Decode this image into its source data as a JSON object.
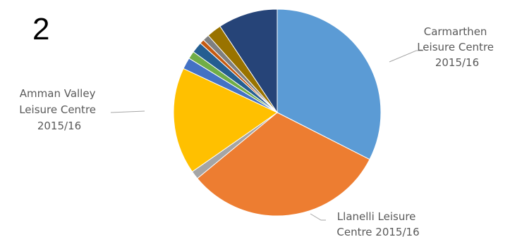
{
  "page_number": "2",
  "chart_data": {
    "type": "pie",
    "title": "",
    "legend": "none",
    "slices": [
      {
        "label": "Carmarthen Leisure Centre 2015/16",
        "value": 32.5,
        "color": "#5b9bd5"
      },
      {
        "label": "Llanelli Leisure Centre 2015/16",
        "value": 31.5,
        "color": "#ed7d31"
      },
      {
        "label": "",
        "value": 1.3,
        "color": "#a5a5a5"
      },
      {
        "label": "Amman Valley Leisure Centre 2015/16",
        "value": 16.7,
        "color": "#ffc000"
      },
      {
        "label": "",
        "value": 1.8,
        "color": "#4472c4"
      },
      {
        "label": "",
        "value": 1.2,
        "color": "#70ad47"
      },
      {
        "label": "",
        "value": 1.7,
        "color": "#255e91"
      },
      {
        "label": "",
        "value": 0.7,
        "color": "#c55a11"
      },
      {
        "label": "",
        "value": 1.0,
        "color": "#7f7f7f"
      },
      {
        "label": "",
        "value": 2.3,
        "color": "#997300"
      },
      {
        "label": "",
        "value": 9.3,
        "color": "#264478"
      }
    ]
  },
  "labels": {
    "carmarthen": [
      "Carmarthen",
      "Leisure Centre",
      "2015/16"
    ],
    "llanelli": [
      "Llanelli Leisure",
      "Centre 2015/16"
    ],
    "amman": [
      "Amman Valley",
      "Leisure Centre",
      "2015/16"
    ]
  }
}
